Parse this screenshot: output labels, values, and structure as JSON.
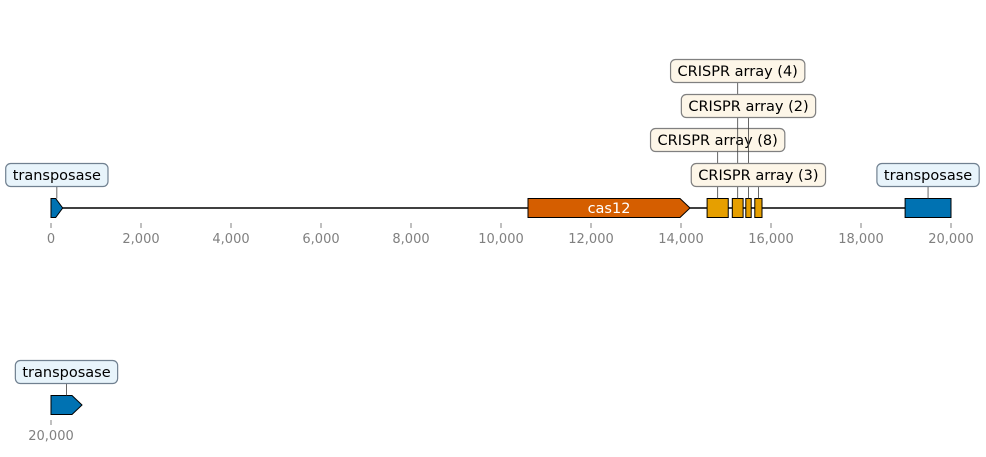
{
  "genome_map": {
    "tracks": [
      {
        "id": "row1",
        "range": [
          0,
          20000
        ],
        "ticks": [
          {
            "value": 0,
            "label": "0"
          },
          {
            "value": 2000,
            "label": "2,000"
          },
          {
            "value": 4000,
            "label": "4,000"
          },
          {
            "value": 6000,
            "label": "6,000"
          },
          {
            "value": 8000,
            "label": "8,000"
          },
          {
            "value": 10000,
            "label": "10,000"
          },
          {
            "value": 12000,
            "label": "12,000"
          },
          {
            "value": 14000,
            "label": "14,000"
          },
          {
            "value": 16000,
            "label": "16,000"
          },
          {
            "value": 18000,
            "label": "18,000"
          },
          {
            "value": 20000,
            "label": "20,000"
          }
        ],
        "features": [
          {
            "name": "transposase",
            "start": 0,
            "end": 260,
            "strand": "+",
            "color": "#0072b2",
            "label_style": "callout",
            "callout_level": 0,
            "callout_theme": "blue"
          },
          {
            "name": "cas12",
            "start": 10600,
            "end": 14200,
            "strand": "+",
            "color": "#d55e00",
            "label_style": "inline"
          },
          {
            "name": "CRISPR array (8)",
            "start": 14580,
            "end": 15050,
            "strand": "none",
            "color": "#e69f00",
            "label_style": "callout",
            "callout_level": 1,
            "callout_theme": "cream"
          },
          {
            "name": "CRISPR array (4)",
            "start": 15140,
            "end": 15380,
            "strand": "none",
            "color": "#e69f00",
            "label_style": "callout",
            "callout_level": 3,
            "callout_theme": "cream"
          },
          {
            "name": "CRISPR array (2)",
            "start": 15440,
            "end": 15560,
            "strand": "none",
            "color": "#e69f00",
            "label_style": "callout",
            "callout_level": 2,
            "callout_theme": "cream"
          },
          {
            "name": "CRISPR array (3)",
            "start": 15640,
            "end": 15800,
            "strand": "none",
            "color": "#e69f00",
            "label_style": "callout",
            "callout_level": 0,
            "callout_theme": "cream"
          },
          {
            "name": "transposase",
            "start": 18980,
            "end": 20000,
            "strand": "none",
            "color": "#0072b2",
            "label_style": "callout",
            "callout_level": 0,
            "callout_theme": "blue"
          }
        ]
      },
      {
        "id": "row2",
        "range": [
          20000,
          20000
        ],
        "ticks": [
          {
            "value": 20000,
            "label": "20,000"
          }
        ],
        "features": [
          {
            "name": "transposase",
            "start": 20000,
            "end": 20000,
            "strand": "+",
            "color": "#0072b2",
            "label_style": "callout",
            "callout_level": 0,
            "callout_theme": "blue"
          }
        ]
      }
    ],
    "themes": {
      "blue": {
        "fill": "#e8f4fb",
        "stroke": "#708090"
      },
      "cream": {
        "fill": "#fdf6e8",
        "stroke": "#808080"
      }
    }
  }
}
